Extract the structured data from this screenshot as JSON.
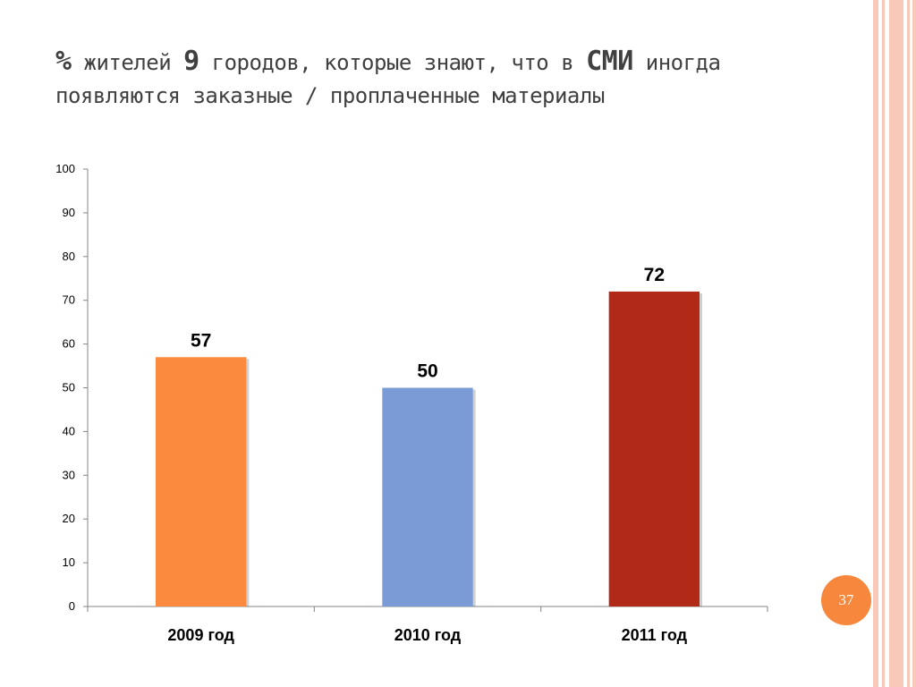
{
  "slide": {
    "title_parts": [
      "%",
      " жителей ",
      "9",
      " городов, которые знают, что в ",
      "СМИ",
      " иногда появляются заказные / проплаченные материалы"
    ],
    "page_number": "37",
    "colors": {
      "accent_orange": "#f7873c",
      "stripe_pink": "#f6c7b6"
    }
  },
  "chart_data": {
    "type": "bar",
    "categories": [
      "2009 год",
      "2010 год",
      "2011 год"
    ],
    "values": [
      57,
      50,
      72
    ],
    "colors": [
      "#fb8a3e",
      "#7b9bd6",
      "#b02a17"
    ],
    "ylim": [
      0,
      100
    ],
    "yticks": [
      0,
      10,
      20,
      30,
      40,
      50,
      60,
      70,
      80,
      90,
      100
    ],
    "grid": false,
    "title": "",
    "xlabel": "",
    "ylabel": ""
  }
}
